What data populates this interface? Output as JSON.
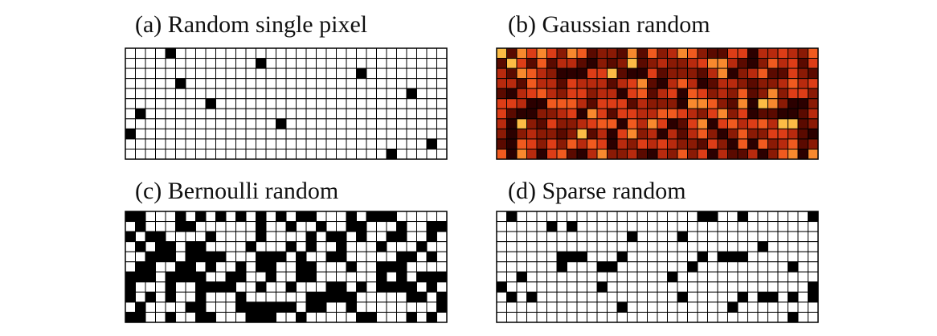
{
  "panels": [
    {
      "key": "a",
      "title": "(a) Random single pixel",
      "type": "single_pixel",
      "rows": 11,
      "cols": 32,
      "filled": [
        [
          0,
          4
        ],
        [
          1,
          13
        ],
        [
          2,
          23
        ],
        [
          3,
          5
        ],
        [
          4,
          28
        ],
        [
          5,
          8
        ],
        [
          6,
          1
        ],
        [
          7,
          15
        ],
        [
          8,
          0
        ],
        [
          9,
          30
        ],
        [
          10,
          26
        ]
      ]
    },
    {
      "key": "b",
      "title": "(b) Gaussian random",
      "type": "gaussian",
      "rows": 11,
      "cols": 32,
      "colormap": "hot"
    },
    {
      "key": "c",
      "title": "(c) Bernoulli random",
      "type": "bernoulli",
      "rows": 11,
      "cols": 32,
      "fill_probability": 0.5
    },
    {
      "key": "d",
      "title": "(d) Sparse random",
      "type": "sparse",
      "rows": 11,
      "cols": 32,
      "fill_probability": 0.12
    }
  ],
  "colors": {
    "grid_line": "#000000",
    "empty_cell": "#ffffff",
    "filled_cell": "#000000",
    "hot_colormap": [
      "#2b0000",
      "#5a0a00",
      "#8a1a05",
      "#b82a0e",
      "#dd3d17",
      "#f05a1f",
      "#f8892e",
      "#fcbc45",
      "#fee86a",
      "#ffffff"
    ]
  }
}
